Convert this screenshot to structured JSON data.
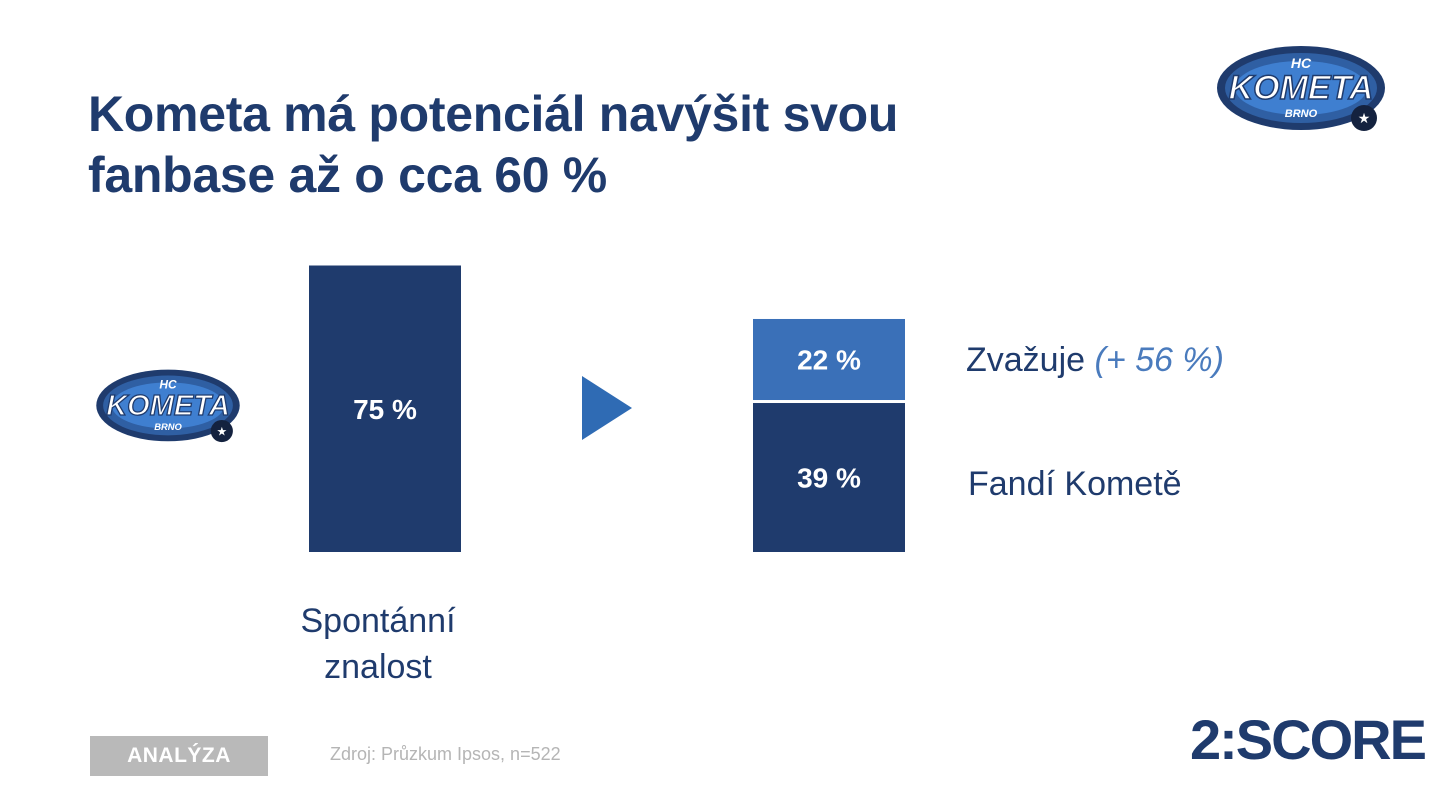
{
  "slide": {
    "title": "Kometa má potenciál navýšit svou\nfanbase až o cca 60 %",
    "badge": "ANALÝZA",
    "source": "Zdroj: Průzkum Ipsos, n=522",
    "brand": "2:SCORE"
  },
  "logo": {
    "top": {
      "line1": "HC",
      "line2": "KOMETA",
      "line3": "BRNO"
    },
    "left": {
      "line1": "HC",
      "line2": "KOMETA",
      "line3": "BRNO"
    }
  },
  "colors": {
    "dark_blue": "#1f3b6d",
    "light_blue": "#3a70b8",
    "arrow": "#2f6bb4",
    "badge_gray": "#b9b9b9"
  },
  "chart_data": {
    "type": "bar",
    "ylim": [
      0,
      100
    ],
    "bars": [
      {
        "category": "Spontánní\nznalost",
        "segments": [
          {
            "value": 75,
            "label": "75 %",
            "color": "#1f3b6d"
          }
        ]
      },
      {
        "category": "",
        "segments": [
          {
            "value": 39,
            "label": "39 %",
            "color": "#1f3b6d",
            "series": "Fandí Kometě"
          },
          {
            "value": 22,
            "label": "22 %",
            "color": "#3a70b8",
            "series": "Zvažuje",
            "note": "(+ 56 %)"
          }
        ]
      }
    ],
    "legend": {
      "fans": "Fandí Kometě",
      "consider": "Zvažuje",
      "consider_note": "(+ 56 %)"
    }
  }
}
